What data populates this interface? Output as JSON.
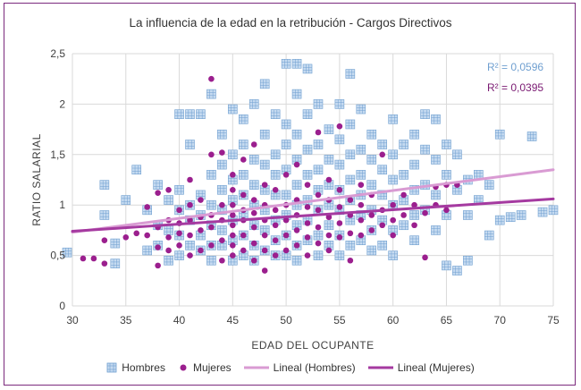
{
  "chart_data": {
    "type": "scatter",
    "title": "La influencia de la edad en la retribución - Cargos Directivos",
    "xlabel": "EDAD DEL OCUPANTE",
    "ylabel": "RATIO SALARIAL",
    "xlim": [
      30,
      75
    ],
    "ylim": [
      0,
      2.5
    ],
    "x_ticks": [
      "30",
      "35",
      "40",
      "45",
      "50",
      "55",
      "60",
      "65",
      "70",
      "75"
    ],
    "y_ticks": [
      "0",
      "0,5",
      "1",
      "1,5",
      "2",
      "2,5"
    ],
    "grid": true,
    "legend_position": "bottom",
    "colors": {
      "hombres": "#9dc3e6",
      "hombres_mark": "#6f9fd0",
      "mujeres": "#9b1f8e",
      "trend_hombres": "#d99bd3",
      "trend_mujeres": "#a53aa0"
    },
    "r2": {
      "hombres": "R² = 0,0596",
      "mujeres": "R² = 0,0395"
    },
    "legend": [
      "Hombres",
      "Mujeres",
      "Lineal (Hombres)",
      "Lineal (Mujeres)"
    ],
    "series": [
      {
        "name": "Hombres",
        "marker": "square",
        "points": [
          [
            29.5,
            0.53
          ],
          [
            33,
            0.9
          ],
          [
            33,
            1.2
          ],
          [
            34,
            0.62
          ],
          [
            34,
            0.42
          ],
          [
            35,
            1.05
          ],
          [
            36,
            1.35
          ],
          [
            37,
            0.95
          ],
          [
            37,
            0.55
          ],
          [
            38,
            1.2
          ],
          [
            38,
            0.8
          ],
          [
            38,
            0.6
          ],
          [
            39,
            1.05
          ],
          [
            39,
            0.75
          ],
          [
            39,
            0.45
          ],
          [
            40,
            1.15
          ],
          [
            40,
            0.95
          ],
          [
            40,
            0.7
          ],
          [
            40,
            0.5
          ],
          [
            40,
            1.9
          ],
          [
            41,
            1.0
          ],
          [
            41,
            0.85
          ],
          [
            41,
            0.6
          ],
          [
            41,
            1.6
          ],
          [
            41,
            1.9
          ],
          [
            42,
            1.1
          ],
          [
            42,
            0.9
          ],
          [
            42,
            0.7
          ],
          [
            42,
            0.55
          ],
          [
            42,
            1.9
          ],
          [
            43,
            1.3
          ],
          [
            43,
            1.0
          ],
          [
            43,
            0.8
          ],
          [
            43,
            0.6
          ],
          [
            43,
            0.45
          ],
          [
            43,
            2.1
          ],
          [
            44,
            1.4
          ],
          [
            44,
            1.15
          ],
          [
            44,
            0.95
          ],
          [
            44,
            0.75
          ],
          [
            44,
            0.6
          ],
          [
            44,
            1.7
          ],
          [
            45,
            1.5
          ],
          [
            45,
            1.25
          ],
          [
            45,
            1.05
          ],
          [
            45,
            0.85
          ],
          [
            45,
            0.65
          ],
          [
            45,
            0.45
          ],
          [
            45,
            1.95
          ],
          [
            46,
            1.6
          ],
          [
            46,
            1.3
          ],
          [
            46,
            1.1
          ],
          [
            46,
            0.9
          ],
          [
            46,
            0.7
          ],
          [
            46,
            0.5
          ],
          [
            46,
            1.85
          ],
          [
            47,
            1.45
          ],
          [
            47,
            1.2
          ],
          [
            47,
            1.0
          ],
          [
            47,
            0.8
          ],
          [
            47,
            0.6
          ],
          [
            47,
            0.45
          ],
          [
            47,
            2.0
          ],
          [
            48,
            1.7
          ],
          [
            48,
            1.4
          ],
          [
            48,
            1.15
          ],
          [
            48,
            0.95
          ],
          [
            48,
            0.75
          ],
          [
            48,
            0.55
          ],
          [
            48,
            2.2
          ],
          [
            49,
            1.5
          ],
          [
            49,
            1.3
          ],
          [
            49,
            1.1
          ],
          [
            49,
            0.85
          ],
          [
            49,
            0.65
          ],
          [
            49,
            0.5
          ],
          [
            49,
            1.9
          ],
          [
            50,
            2.4
          ],
          [
            50,
            1.8
          ],
          [
            50,
            1.6
          ],
          [
            50,
            1.35
          ],
          [
            50,
            1.1
          ],
          [
            50,
            0.9
          ],
          [
            50,
            0.7
          ],
          [
            50,
            0.5
          ],
          [
            51,
            2.4
          ],
          [
            51,
            2.1
          ],
          [
            51,
            1.7
          ],
          [
            51,
            1.45
          ],
          [
            51,
            1.2
          ],
          [
            51,
            1.0
          ],
          [
            51,
            0.8
          ],
          [
            51,
            0.6
          ],
          [
            51,
            0.45
          ],
          [
            52,
            2.35
          ],
          [
            52,
            1.9
          ],
          [
            52,
            1.55
          ],
          [
            52,
            1.3
          ],
          [
            52,
            1.05
          ],
          [
            52,
            0.85
          ],
          [
            52,
            0.65
          ],
          [
            53,
            2.0
          ],
          [
            53,
            1.6
          ],
          [
            53,
            1.35
          ],
          [
            53,
            1.15
          ],
          [
            53,
            0.95
          ],
          [
            53,
            0.7
          ],
          [
            53,
            0.5
          ],
          [
            54,
            1.75
          ],
          [
            54,
            1.45
          ],
          [
            54,
            1.2
          ],
          [
            54,
            1.0
          ],
          [
            54,
            0.8
          ],
          [
            54,
            0.6
          ],
          [
            55,
            2.0
          ],
          [
            55,
            1.65
          ],
          [
            55,
            1.4
          ],
          [
            55,
            1.15
          ],
          [
            55,
            0.95
          ],
          [
            55,
            0.7
          ],
          [
            55,
            0.5
          ],
          [
            56,
            2.3
          ],
          [
            56,
            1.8
          ],
          [
            56,
            1.5
          ],
          [
            56,
            1.25
          ],
          [
            56,
            1.05
          ],
          [
            56,
            0.85
          ],
          [
            56,
            0.6
          ],
          [
            57,
            1.95
          ],
          [
            57,
            1.55
          ],
          [
            57,
            1.3
          ],
          [
            57,
            1.1
          ],
          [
            57,
            0.9
          ],
          [
            57,
            0.65
          ],
          [
            58,
            1.7
          ],
          [
            58,
            1.45
          ],
          [
            58,
            1.2
          ],
          [
            58,
            0.95
          ],
          [
            58,
            0.75
          ],
          [
            58,
            0.55
          ],
          [
            59,
            1.6
          ],
          [
            59,
            1.35
          ],
          [
            59,
            1.1
          ],
          [
            59,
            0.85
          ],
          [
            59,
            0.6
          ],
          [
            60,
            1.85
          ],
          [
            60,
            1.5
          ],
          [
            60,
            1.25
          ],
          [
            60,
            1.0
          ],
          [
            60,
            0.75
          ],
          [
            60,
            0.5
          ],
          [
            61,
            1.6
          ],
          [
            61,
            1.3
          ],
          [
            61,
            1.05
          ],
          [
            61,
            0.8
          ],
          [
            62,
            1.7
          ],
          [
            62,
            1.4
          ],
          [
            62,
            1.15
          ],
          [
            62,
            0.9
          ],
          [
            62,
            0.65
          ],
          [
            63,
            1.9
          ],
          [
            63,
            1.55
          ],
          [
            63,
            1.2
          ],
          [
            63,
            0.95
          ],
          [
            64,
            1.85
          ],
          [
            64,
            1.45
          ],
          [
            64,
            1.1
          ],
          [
            64,
            0.75
          ],
          [
            65,
            1.6
          ],
          [
            65,
            1.3
          ],
          [
            65,
            0.9
          ],
          [
            65,
            0.4
          ],
          [
            66,
            1.5
          ],
          [
            66,
            1.15
          ],
          [
            66,
            0.35
          ],
          [
            67,
            1.25
          ],
          [
            67,
            0.9
          ],
          [
            67,
            0.45
          ],
          [
            68,
            1.3
          ],
          [
            68,
            1.05
          ],
          [
            69,
            1.2
          ],
          [
            69,
            0.7
          ],
          [
            70,
            1.7
          ],
          [
            70,
            0.85
          ],
          [
            71,
            0.88
          ],
          [
            72,
            0.9
          ],
          [
            73,
            1.68
          ],
          [
            74,
            0.93
          ],
          [
            75,
            0.95
          ]
        ]
      },
      {
        "name": "Mujeres",
        "marker": "circle",
        "points": [
          [
            31,
            0.47
          ],
          [
            32,
            0.47
          ],
          [
            33,
            0.42
          ],
          [
            33,
            0.65
          ],
          [
            35,
            0.68
          ],
          [
            36,
            0.72
          ],
          [
            37,
            0.7
          ],
          [
            37,
            0.98
          ],
          [
            38,
            0.4
          ],
          [
            38,
            0.58
          ],
          [
            38,
            0.78
          ],
          [
            38,
            1.12
          ],
          [
            39,
            0.55
          ],
          [
            39,
            0.68
          ],
          [
            39,
            0.85
          ],
          [
            39,
            1.15
          ],
          [
            40,
            0.6
          ],
          [
            40,
            0.72
          ],
          [
            40,
            0.82
          ],
          [
            40,
            0.95
          ],
          [
            41,
            0.5
          ],
          [
            41,
            0.7
          ],
          [
            41,
            0.85
          ],
          [
            41,
            1.0
          ],
          [
            41,
            1.25
          ],
          [
            42,
            0.55
          ],
          [
            42,
            0.75
          ],
          [
            42,
            0.88
          ],
          [
            42,
            1.05
          ],
          [
            43,
            0.6
          ],
          [
            43,
            0.78
          ],
          [
            43,
            0.9
          ],
          [
            43,
            1.5
          ],
          [
            43,
            2.25
          ],
          [
            44,
            0.45
          ],
          [
            44,
            0.65
          ],
          [
            44,
            0.85
          ],
          [
            44,
            1.0
          ],
          [
            44,
            1.52
          ],
          [
            45,
            0.5
          ],
          [
            45,
            0.6
          ],
          [
            45,
            0.7
          ],
          [
            45,
            0.8
          ],
          [
            45,
            0.9
          ],
          [
            45,
            1.0
          ],
          [
            45,
            1.15
          ],
          [
            45,
            1.3
          ],
          [
            46,
            0.55
          ],
          [
            46,
            0.7
          ],
          [
            46,
            0.85
          ],
          [
            46,
            0.95
          ],
          [
            46,
            1.1
          ],
          [
            46,
            1.45
          ],
          [
            47,
            0.45
          ],
          [
            47,
            0.62
          ],
          [
            47,
            0.78
          ],
          [
            47,
            0.92
          ],
          [
            47,
            1.05
          ],
          [
            47,
            1.6
          ],
          [
            48,
            0.35
          ],
          [
            48,
            0.55
          ],
          [
            48,
            0.7
          ],
          [
            48,
            0.85
          ],
          [
            48,
            1.0
          ],
          [
            48,
            1.2
          ],
          [
            49,
            0.5
          ],
          [
            49,
            0.65
          ],
          [
            49,
            0.8
          ],
          [
            49,
            0.95
          ],
          [
            49,
            1.15
          ],
          [
            50,
            0.55
          ],
          [
            50,
            0.7
          ],
          [
            50,
            0.85
          ],
          [
            50,
            1.0
          ],
          [
            50,
            1.3
          ],
          [
            51,
            0.6
          ],
          [
            51,
            0.75
          ],
          [
            51,
            0.9
          ],
          [
            51,
            1.05
          ],
          [
            51,
            1.4
          ],
          [
            52,
            0.5
          ],
          [
            52,
            0.68
          ],
          [
            52,
            0.82
          ],
          [
            52,
            0.98
          ],
          [
            52,
            1.2
          ],
          [
            53,
            0.62
          ],
          [
            53,
            0.78
          ],
          [
            53,
            0.95
          ],
          [
            53,
            1.1
          ],
          [
            53,
            1.72
          ],
          [
            54,
            0.55
          ],
          [
            54,
            0.7
          ],
          [
            54,
            0.88
          ],
          [
            54,
            1.05
          ],
          [
            54,
            1.25
          ],
          [
            55,
            0.68
          ],
          [
            55,
            0.82
          ],
          [
            55,
            0.98
          ],
          [
            55,
            1.15
          ],
          [
            55,
            1.78
          ],
          [
            56,
            0.45
          ],
          [
            56,
            0.72
          ],
          [
            56,
            0.9
          ],
          [
            56,
            1.05
          ],
          [
            57,
            0.7
          ],
          [
            57,
            0.85
          ],
          [
            57,
            1.0
          ],
          [
            57,
            1.2
          ],
          [
            58,
            0.75
          ],
          [
            58,
            0.9
          ],
          [
            58,
            1.1
          ],
          [
            59,
            0.8
          ],
          [
            59,
            0.95
          ],
          [
            59,
            1.5
          ],
          [
            60,
            0.7
          ],
          [
            60,
            0.85
          ],
          [
            60,
            1.0
          ],
          [
            61,
            0.9
          ],
          [
            61,
            1.1
          ],
          [
            62,
            0.8
          ],
          [
            62,
            1.0
          ],
          [
            63,
            0.48
          ],
          [
            63,
            0.92
          ],
          [
            64,
            1.0
          ],
          [
            64,
            1.18
          ],
          [
            65,
            0.95
          ],
          [
            65,
            1.2
          ],
          [
            66,
            1.2
          ]
        ]
      }
    ],
    "trendlines": [
      {
        "name": "Lineal (Hombres)",
        "x": [
          30,
          75
        ],
        "y": [
          0.73,
          1.35
        ]
      },
      {
        "name": "Lineal (Mujeres)",
        "x": [
          30,
          75
        ],
        "y": [
          0.74,
          1.06
        ]
      }
    ]
  }
}
